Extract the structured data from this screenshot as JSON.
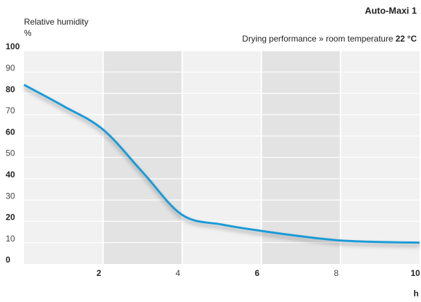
{
  "chart_data": {
    "type": "line",
    "title": "Auto-Maxi 1",
    "subtitle": "Drying performance » room temperature",
    "subtitle_value": "22 °C",
    "y_label": "Relative humidity",
    "y_unit": "%",
    "x_label": "h",
    "x": [
      0,
      1,
      2,
      3,
      4,
      5,
      6,
      7,
      8,
      9,
      10
    ],
    "series": [
      {
        "name": "Auto-Maxi 1",
        "color": "#1a9bd7",
        "values": [
          84,
          74,
          63,
          43,
          23,
          18.5,
          15.5,
          13,
          11,
          10.3,
          10
        ]
      }
    ],
    "xlim": [
      0,
      10
    ],
    "xticks": [
      2,
      4,
      6,
      8,
      10
    ],
    "ylim": [
      0,
      100
    ],
    "yticks": [
      0,
      10,
      20,
      30,
      40,
      50,
      60,
      70,
      80,
      90,
      100
    ],
    "grid": true
  }
}
